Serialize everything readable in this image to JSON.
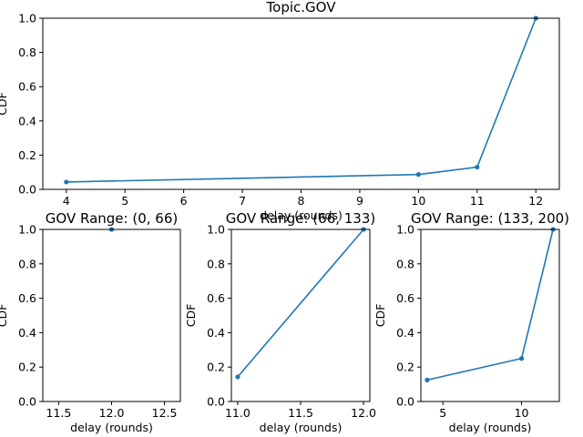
{
  "chart_data": [
    {
      "type": "line",
      "title": "Topic.GOV",
      "xlabel": "delay (rounds)",
      "ylabel": "CDF",
      "x": [
        4,
        10,
        11,
        12
      ],
      "y": [
        0.043,
        0.087,
        0.13,
        1.0
      ],
      "xlim": [
        3.6,
        12.4
      ],
      "ylim": [
        0,
        1
      ],
      "xticks": [
        4,
        5,
        6,
        7,
        8,
        9,
        10,
        11,
        12
      ],
      "yticks": [
        0.0,
        0.2,
        0.4,
        0.6,
        0.8,
        1.0
      ],
      "xtick_labels": [
        "4",
        "5",
        "6",
        "7",
        "8",
        "9",
        "10",
        "11",
        "12"
      ],
      "ytick_labels": [
        "0.0",
        "0.2",
        "0.4",
        "0.6",
        "0.8",
        "1.0"
      ]
    },
    {
      "type": "line",
      "title": "GOV Range: (0, 66)",
      "xlabel": "delay (rounds)",
      "ylabel": "CDF",
      "x": [
        12
      ],
      "y": [
        1.0
      ],
      "xlim": [
        11.35,
        12.65
      ],
      "ylim": [
        0,
        1
      ],
      "xticks": [
        11.5,
        12.0,
        12.5
      ],
      "yticks": [
        0.0,
        0.2,
        0.4,
        0.6,
        0.8,
        1.0
      ],
      "xtick_labels": [
        "11.5",
        "12.0",
        "12.5"
      ],
      "ytick_labels": [
        "0.0",
        "0.2",
        "0.4",
        "0.6",
        "0.8",
        "1.0"
      ]
    },
    {
      "type": "line",
      "title": "GOV Range: (66, 133)",
      "xlabel": "delay (rounds)",
      "ylabel": "CDF",
      "x": [
        11,
        12
      ],
      "y": [
        0.143,
        1.0
      ],
      "xlim": [
        10.95,
        12.05
      ],
      "ylim": [
        0,
        1
      ],
      "xticks": [
        11.0,
        11.5,
        12.0
      ],
      "yticks": [
        0.0,
        0.2,
        0.4,
        0.6,
        0.8,
        1.0
      ],
      "xtick_labels": [
        "11.0",
        "11.5",
        "12.0"
      ],
      "ytick_labels": [
        "0.0",
        "0.2",
        "0.4",
        "0.6",
        "0.8",
        "1.0"
      ]
    },
    {
      "type": "line",
      "title": "GOV Range: (133, 200)",
      "xlabel": "delay (rounds)",
      "ylabel": "CDF",
      "x": [
        4,
        10,
        12
      ],
      "y": [
        0.125,
        0.25,
        1.0
      ],
      "xlim": [
        3.6,
        12.4
      ],
      "ylim": [
        0,
        1
      ],
      "xticks": [
        5,
        10
      ],
      "yticks": [
        0.0,
        0.2,
        0.4,
        0.6,
        0.8,
        1.0
      ],
      "xtick_labels": [
        "5",
        "10"
      ],
      "ytick_labels": [
        "0.0",
        "0.2",
        "0.4",
        "0.6",
        "0.8",
        "1.0"
      ]
    }
  ]
}
